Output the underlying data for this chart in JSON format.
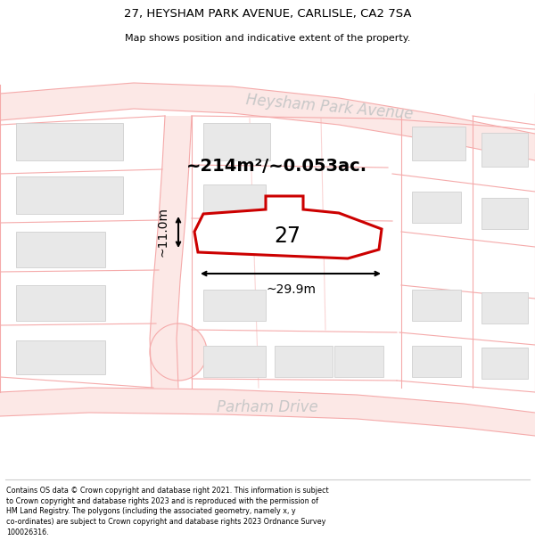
{
  "title": "27, HEYSHAM PARK AVENUE, CARLISLE, CA2 7SA",
  "subtitle": "Map shows position and indicative extent of the property.",
  "footer_line1": "Contains OS data © Crown copyright and database right 2021. This information is subject",
  "footer_line2": "to Crown copyright and database rights 2023 and is reproduced with the permission of",
  "footer_line3": "HM Land Registry. The polygons (including the associated geometry, namely x, y",
  "footer_line4": "co-ordinates) are subject to Crown copyright and database rights 2023 Ordnance Survey",
  "footer_line5": "100026316.",
  "road_label_top": "Heysham Park Avenue",
  "road_label_bottom": "Parham Drive",
  "area_label": "~214m²/~0.053ac.",
  "plot_number": "27",
  "dim_width": "~29.9m",
  "dim_height": "~11.0m",
  "bg_color": "#ffffff",
  "road_line_color": "#f5aaaa",
  "building_fill": "#e8e8e8",
  "building_edge": "#d0d0d0",
  "plot_border": "#cc0000",
  "road_label_color": "#c8c8c8",
  "title_color": "#000000",
  "footer_color": "#000000",
  "separator_color": "#cccccc"
}
